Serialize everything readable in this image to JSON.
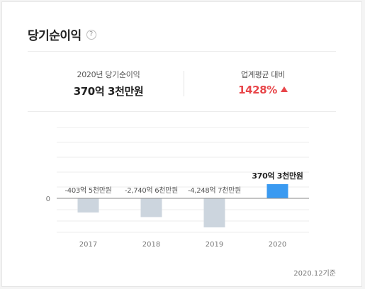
{
  "card": {
    "title": "당기순이익",
    "help_icon": "?"
  },
  "summary": {
    "left_label": "2020년 당기순이익",
    "left_value": "370억 3천만원",
    "right_label": "업계평균 대비",
    "right_value": "1428%",
    "right_trend_icon": "triangle-up-icon",
    "up_color": "#e8464a"
  },
  "chart_data": {
    "type": "bar",
    "categories": [
      "2017",
      "2018",
      "2019",
      "2020"
    ],
    "values": [
      -403.5,
      -2740.6,
      -4248.7,
      370.3
    ],
    "value_unit": "억원",
    "data_labels": [
      "-403억 5천만원",
      "-2,740억 6천만원",
      "-4,248억 7천만원",
      "370억 3천만원"
    ],
    "y_tick_labels": [
      "0"
    ],
    "zero_line": true,
    "grid": true,
    "highlight_index": 3,
    "colors": {
      "default": "#ccd5de",
      "highlight": "#3a9af1",
      "baseline": "#888888",
      "grid": "#ececec"
    }
  },
  "footer": {
    "basis": "2020.12기준"
  }
}
